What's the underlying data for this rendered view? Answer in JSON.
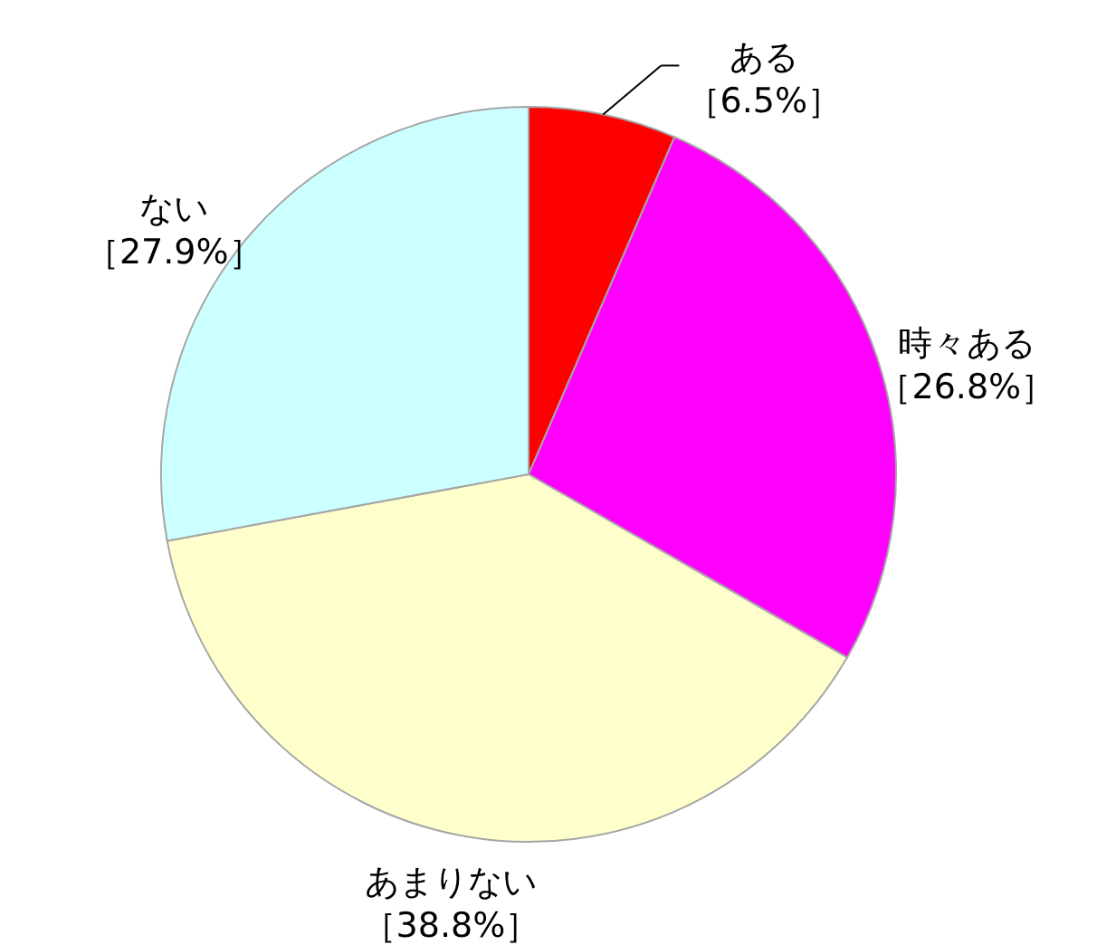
{
  "chart_data": {
    "type": "pie",
    "categories": [
      "ある",
      "時々ある",
      "あまりない",
      "ない"
    ],
    "values": [
      6.5,
      26.8,
      38.8,
      27.9
    ],
    "colors": [
      "#ff0000",
      "#ff00ff",
      "#ffffcc",
      "#ccffff"
    ],
    "value_labels": [
      "［6.5%］",
      "［26.8%］",
      "［38.8%］",
      "［27.9%］"
    ]
  }
}
